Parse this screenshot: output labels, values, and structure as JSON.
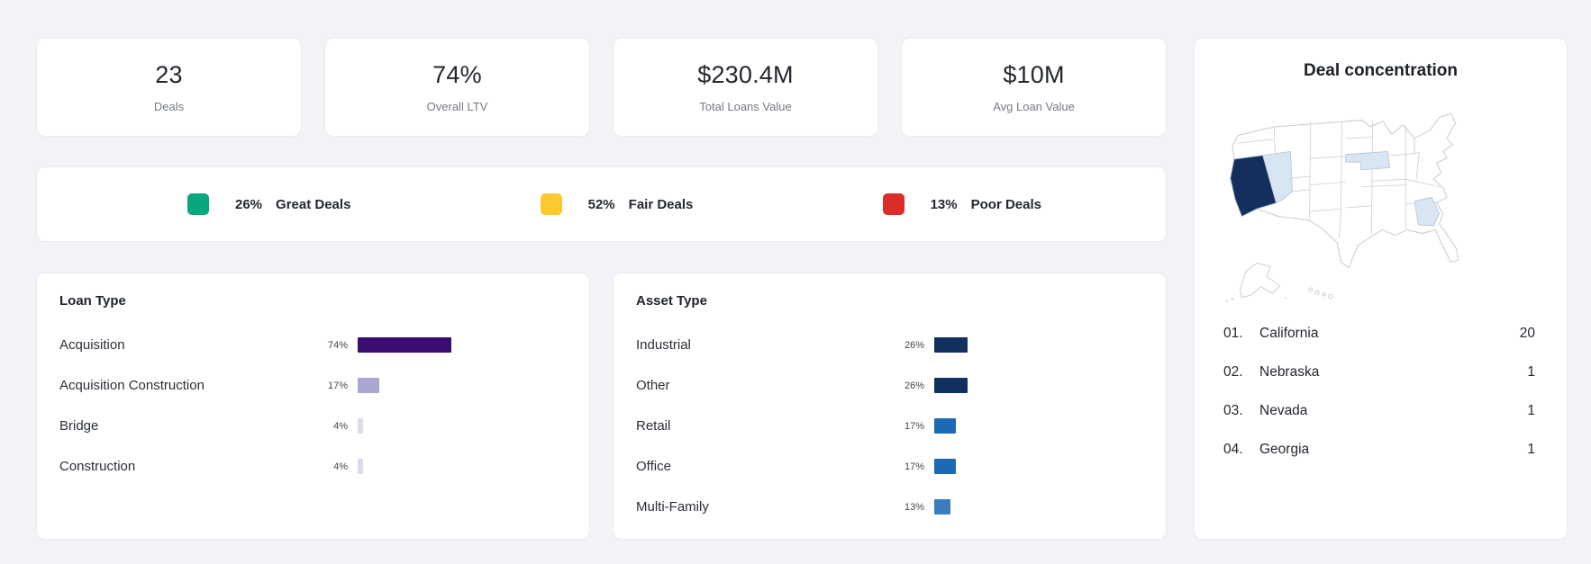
{
  "stats": [
    {
      "value": "23",
      "label": "Deals"
    },
    {
      "value": "74%",
      "label": "Overall LTV"
    },
    {
      "value": "$230.4M",
      "label": "Total Loans Value"
    },
    {
      "value": "$10M",
      "label": "Avg Loan Value"
    }
  ],
  "deal_quality_legend": [
    {
      "pct": "26%",
      "label": "Great Deals",
      "color": "#09a77e"
    },
    {
      "pct": "52%",
      "label": "Fair Deals",
      "color": "#fec92e"
    },
    {
      "pct": "13%",
      "label": "Poor Deals",
      "color": "#db2b2b"
    }
  ],
  "loan_type": {
    "title": "Loan Type",
    "rows": [
      {
        "label": "Acquisition",
        "pct": "74%",
        "value": 74,
        "color": "#3a0d71"
      },
      {
        "label": "Acquisition Construction",
        "pct": "17%",
        "value": 17,
        "color": "#aaa6d2"
      },
      {
        "label": "Bridge",
        "pct": "4%",
        "value": 4,
        "color": "#dcdaeb"
      },
      {
        "label": "Construction",
        "pct": "4%",
        "value": 4,
        "color": "#dcdaeb"
      }
    ]
  },
  "asset_type": {
    "title": "Asset Type",
    "rows": [
      {
        "label": "Industrial",
        "pct": "26%",
        "value": 26,
        "color": "#10305f"
      },
      {
        "label": "Other",
        "pct": "26%",
        "value": 26,
        "color": "#10305f"
      },
      {
        "label": "Retail",
        "pct": "17%",
        "value": 17,
        "color": "#1c69b4"
      },
      {
        "label": "Office",
        "pct": "17%",
        "value": 17,
        "color": "#1c69b4"
      },
      {
        "label": "Multi-Family",
        "pct": "13%",
        "value": 13,
        "color": "#3a7ec0"
      }
    ]
  },
  "deal_concentration": {
    "title": "Deal concentration",
    "map_colors": {
      "primary": "#142f5e",
      "secondary": "#d8e5f2",
      "default": "#ffffff",
      "border": "#c9cdd4"
    },
    "states": [
      {
        "rank": "01.",
        "name": "California",
        "count": "20"
      },
      {
        "rank": "02.",
        "name": "Nebraska",
        "count": "1"
      },
      {
        "rank": "03.",
        "name": "Nevada",
        "count": "1"
      },
      {
        "rank": "04.",
        "name": "Georgia",
        "count": "1"
      }
    ]
  }
}
